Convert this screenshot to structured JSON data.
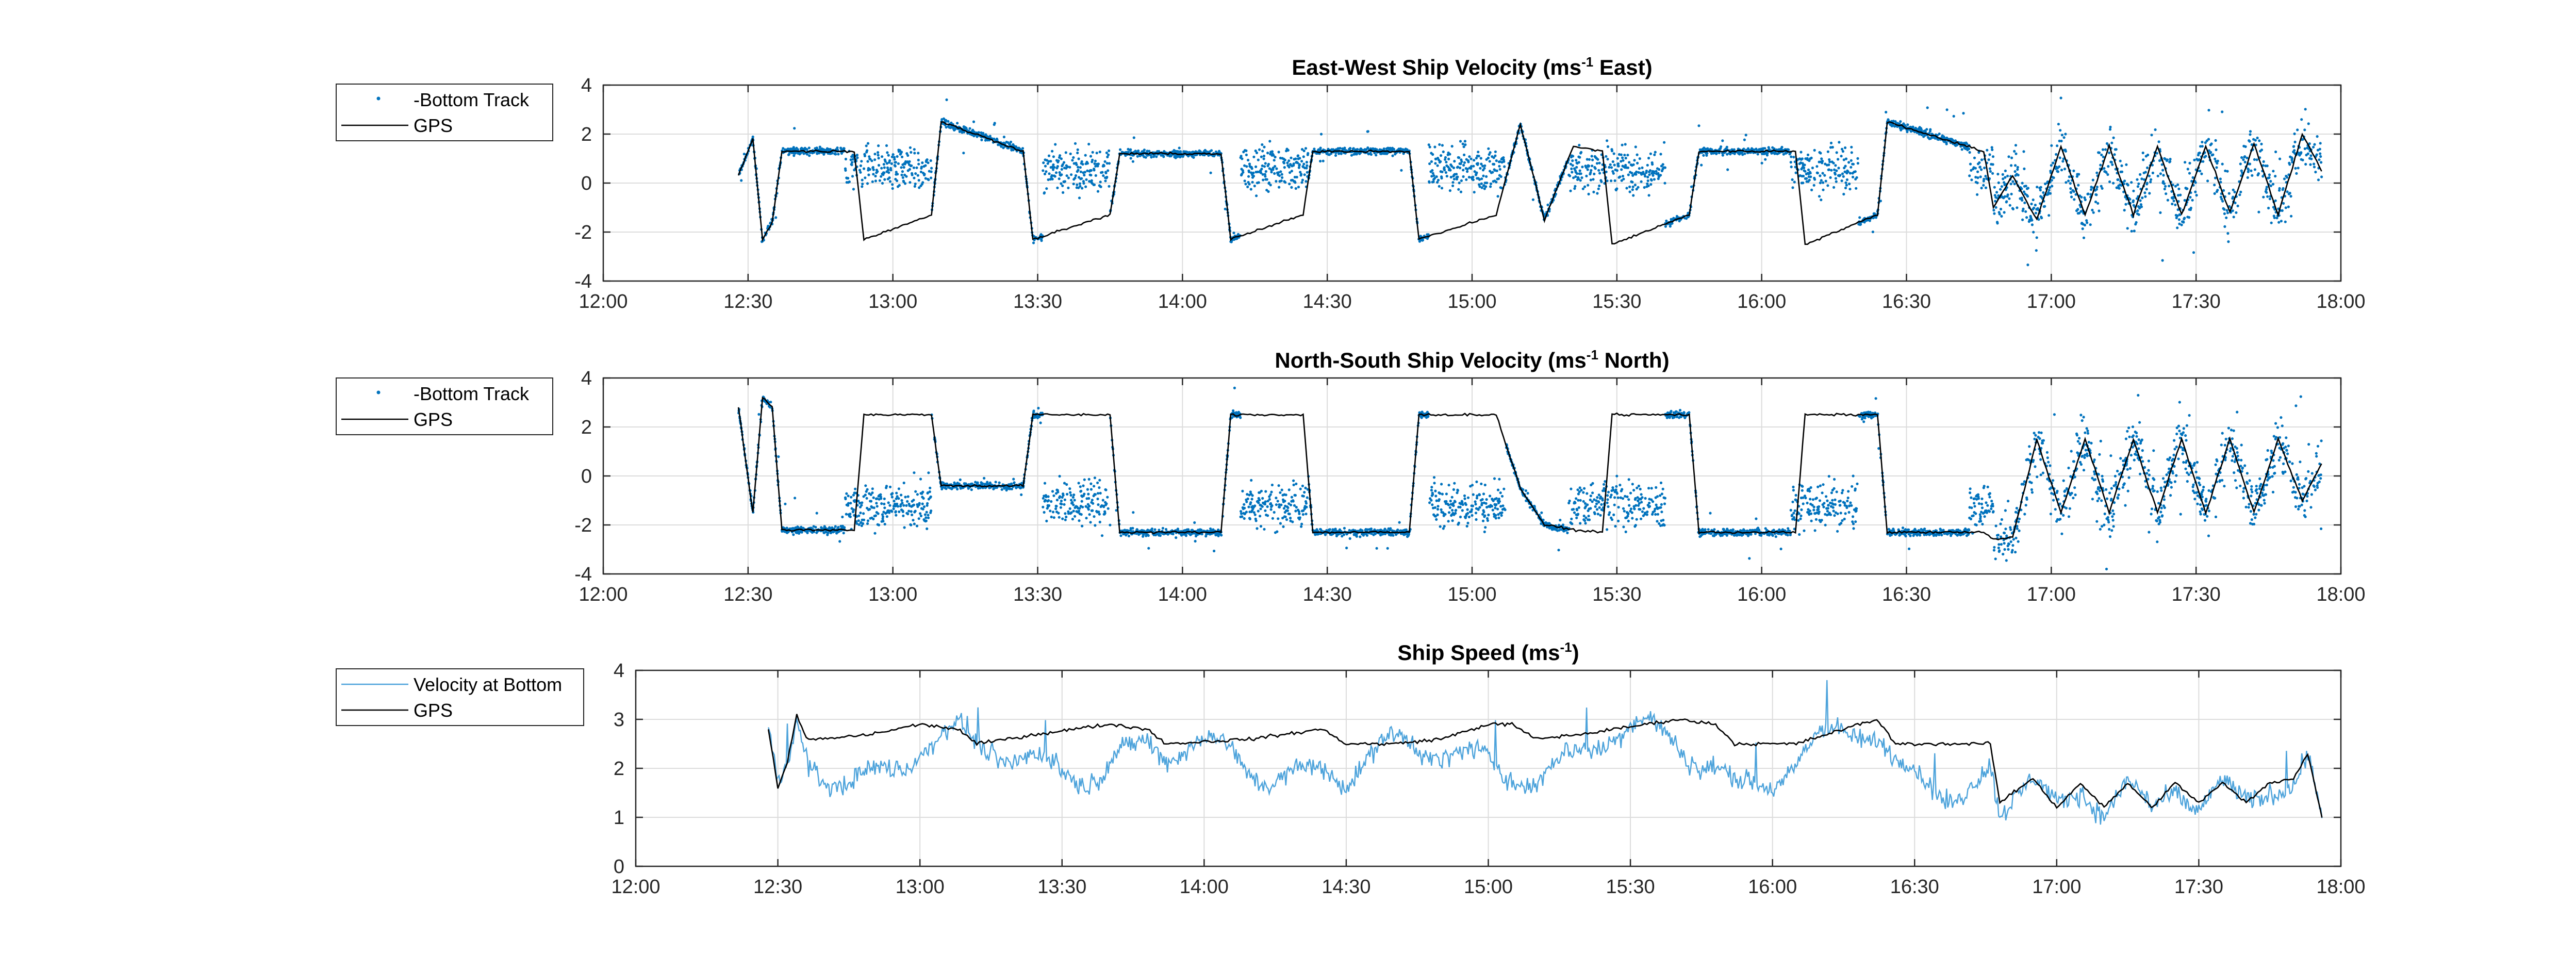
{
  "colors": {
    "bottom": "#0072BD",
    "gps": "#000000",
    "speed_bottom": "#4DA3DB",
    "grid": "#DCDCDC",
    "axes": "#262626"
  },
  "chart_data": [
    {
      "type": "scatter",
      "title": "East-West Ship Velocity (ms^-1 East)",
      "title_parts": {
        "main": "East-West Ship Velocity (ms",
        "sup": "-1",
        "rest": " East)"
      },
      "xlabel": "",
      "ylabel": "",
      "x_unit": "time_of_day",
      "xlim": [
        "12:00",
        "18:00"
      ],
      "ylim": [
        -4,
        4
      ],
      "x_ticks": [
        "12:00",
        "12:30",
        "13:00",
        "13:30",
        "14:00",
        "14:30",
        "15:00",
        "15:30",
        "16:00",
        "16:30",
        "17:00",
        "17:30",
        "18:00"
      ],
      "y_ticks": [
        "-4",
        "-2",
        "0",
        "2",
        "4"
      ],
      "grid": true,
      "legend": {
        "placement": "outside-left",
        "entries": [
          "-Bottom Track",
          "GPS"
        ]
      },
      "series": [
        {
          "name": "GPS",
          "style": "line",
          "x": [
            "12:28",
            "12:31",
            "12:33",
            "12:35",
            "12:37",
            "12:52",
            "12:54",
            "13:08",
            "13:10",
            "13:27",
            "13:29",
            "13:45",
            "13:47",
            "14:08",
            "14:10",
            "14:25",
            "14:27",
            "14:47",
            "14:49",
            "15:05",
            "15:10",
            "15:15",
            "15:21",
            "15:27",
            "15:29",
            "15:45",
            "15:47",
            "16:07",
            "16:09",
            "16:24",
            "16:26",
            "16:46",
            "16:48",
            "16:52",
            "16:57",
            "17:02",
            "17:07",
            "17:12",
            "17:17",
            "17:22",
            "17:27",
            "17:32",
            "17:37",
            "17:42",
            "17:47",
            "17:52",
            "17:56"
          ],
          "y": [
            0.3,
            1.8,
            -2.3,
            -1.6,
            1.3,
            1.3,
            -2.3,
            -1.3,
            2.5,
            1.3,
            -2.3,
            -1.3,
            1.2,
            1.2,
            -2.3,
            -1.3,
            1.3,
            1.3,
            -2.3,
            -1.3,
            2.4,
            -1.5,
            1.5,
            1.3,
            -2.5,
            -1.3,
            1.3,
            1.3,
            -2.5,
            -1.3,
            2.5,
            1.3,
            -1.0,
            0.3,
            -1.5,
            1.5,
            -1.3,
            1.5,
            -1.3,
            1.5,
            -1.3,
            1.5,
            -1.2,
            1.6,
            -1.3,
            2.0,
            0.5
          ]
        },
        {
          "name": "-Bottom Track",
          "style": "points",
          "note": "noisy bottom-track estimate around GPS"
        }
      ]
    },
    {
      "type": "scatter",
      "title": "North-South Ship Velocity (ms^-1 North)",
      "title_parts": {
        "main": "North-South Ship Velocity (ms",
        "sup": "-1",
        "rest": " North)"
      },
      "xlabel": "",
      "ylabel": "",
      "x_unit": "time_of_day",
      "xlim": [
        "12:00",
        "18:00"
      ],
      "ylim": [
        -4,
        4
      ],
      "x_ticks": [
        "12:00",
        "12:30",
        "13:00",
        "13:30",
        "14:00",
        "14:30",
        "15:00",
        "15:30",
        "16:00",
        "16:30",
        "17:00",
        "17:30",
        "18:00"
      ],
      "y_ticks": [
        "-4",
        "-2",
        "0",
        "2",
        "4"
      ],
      "grid": true,
      "legend": {
        "placement": "outside-left",
        "entries": [
          "-Bottom Track",
          "GPS"
        ]
      },
      "series": [
        {
          "name": "GPS",
          "style": "line",
          "x": [
            "12:28",
            "12:31",
            "12:33",
            "12:35",
            "12:37",
            "12:52",
            "12:54",
            "13:08",
            "13:10",
            "13:27",
            "13:29",
            "13:45",
            "13:47",
            "14:08",
            "14:10",
            "14:25",
            "14:27",
            "14:47",
            "14:49",
            "15:05",
            "15:10",
            "15:15",
            "15:21",
            "15:27",
            "15:29",
            "15:45",
            "15:47",
            "16:07",
            "16:09",
            "16:24",
            "16:26",
            "16:46",
            "16:48",
            "16:52",
            "16:57",
            "17:02",
            "17:07",
            "17:12",
            "17:17",
            "17:22",
            "17:27",
            "17:32",
            "17:37",
            "17:42",
            "17:47",
            "17:52",
            "17:56"
          ],
          "y": [
            2.8,
            -1.5,
            3.2,
            2.8,
            -2.2,
            -2.2,
            2.5,
            2.5,
            -0.4,
            -0.4,
            2.5,
            2.5,
            -2.3,
            -2.3,
            2.5,
            2.5,
            -2.3,
            -2.3,
            2.5,
            2.5,
            -0.5,
            -2.0,
            -2.2,
            -2.3,
            2.5,
            2.5,
            -2.3,
            -2.3,
            2.5,
            2.5,
            -2.3,
            -2.3,
            -2.6,
            -2.5,
            1.5,
            -1.5,
            1.5,
            -1.5,
            1.5,
            -1.5,
            1.5,
            -1.5,
            1.5,
            -1.5,
            1.5,
            -1.0,
            0.5
          ]
        },
        {
          "name": "-Bottom Track",
          "style": "points",
          "note": "noisy bottom-track estimate around GPS"
        }
      ]
    },
    {
      "type": "line",
      "title": "Ship Speed (ms^-1)",
      "title_parts": {
        "main": "Ship Speed (ms",
        "sup": "-1",
        "rest": ")"
      },
      "xlabel": "",
      "ylabel": "",
      "x_unit": "time_of_day",
      "xlim": [
        "12:00",
        "18:00"
      ],
      "ylim": [
        0,
        4
      ],
      "x_ticks": [
        "12:00",
        "12:30",
        "13:00",
        "13:30",
        "14:00",
        "14:30",
        "15:00",
        "15:30",
        "16:00",
        "16:30",
        "17:00",
        "17:30",
        "18:00"
      ],
      "y_ticks": [
        "0",
        "1",
        "2",
        "3",
        "4"
      ],
      "grid": true,
      "legend": {
        "placement": "outside-left",
        "entries": [
          "Velocity at Bottom",
          "GPS"
        ]
      },
      "series": [
        {
          "name": "GPS",
          "style": "line",
          "x": [
            "12:28",
            "12:30",
            "12:32",
            "12:34",
            "12:36",
            "12:40",
            "12:50",
            "13:00",
            "13:08",
            "13:12",
            "13:25",
            "13:40",
            "13:48",
            "13:52",
            "14:10",
            "14:25",
            "14:30",
            "14:40",
            "14:50",
            "15:00",
            "15:05",
            "15:10",
            "15:20",
            "15:40",
            "15:48",
            "15:52",
            "16:05",
            "16:15",
            "16:22",
            "16:26",
            "16:40",
            "16:46",
            "16:48",
            "16:55",
            "17:00",
            "17:05",
            "17:10",
            "17:15",
            "17:20",
            "17:25",
            "17:30",
            "17:35",
            "17:40",
            "17:45",
            "17:50",
            "17:53",
            "17:56"
          ],
          "y": [
            2.8,
            1.6,
            2.1,
            3.1,
            2.6,
            2.6,
            2.7,
            2.9,
            2.8,
            2.5,
            2.7,
            2.9,
            2.8,
            2.5,
            2.6,
            2.8,
            2.5,
            2.5,
            2.6,
            2.9,
            2.9,
            2.6,
            2.7,
            3.0,
            2.9,
            2.5,
            2.5,
            2.8,
            3.0,
            2.5,
            2.5,
            2.5,
            1.3,
            1.8,
            1.2,
            1.7,
            1.2,
            1.7,
            1.2,
            1.7,
            1.3,
            1.7,
            1.3,
            1.7,
            1.8,
            2.3,
            1.0
          ]
        },
        {
          "name": "Velocity at Bottom",
          "style": "line",
          "note": "noisy speed from bottom track"
        }
      ]
    }
  ]
}
